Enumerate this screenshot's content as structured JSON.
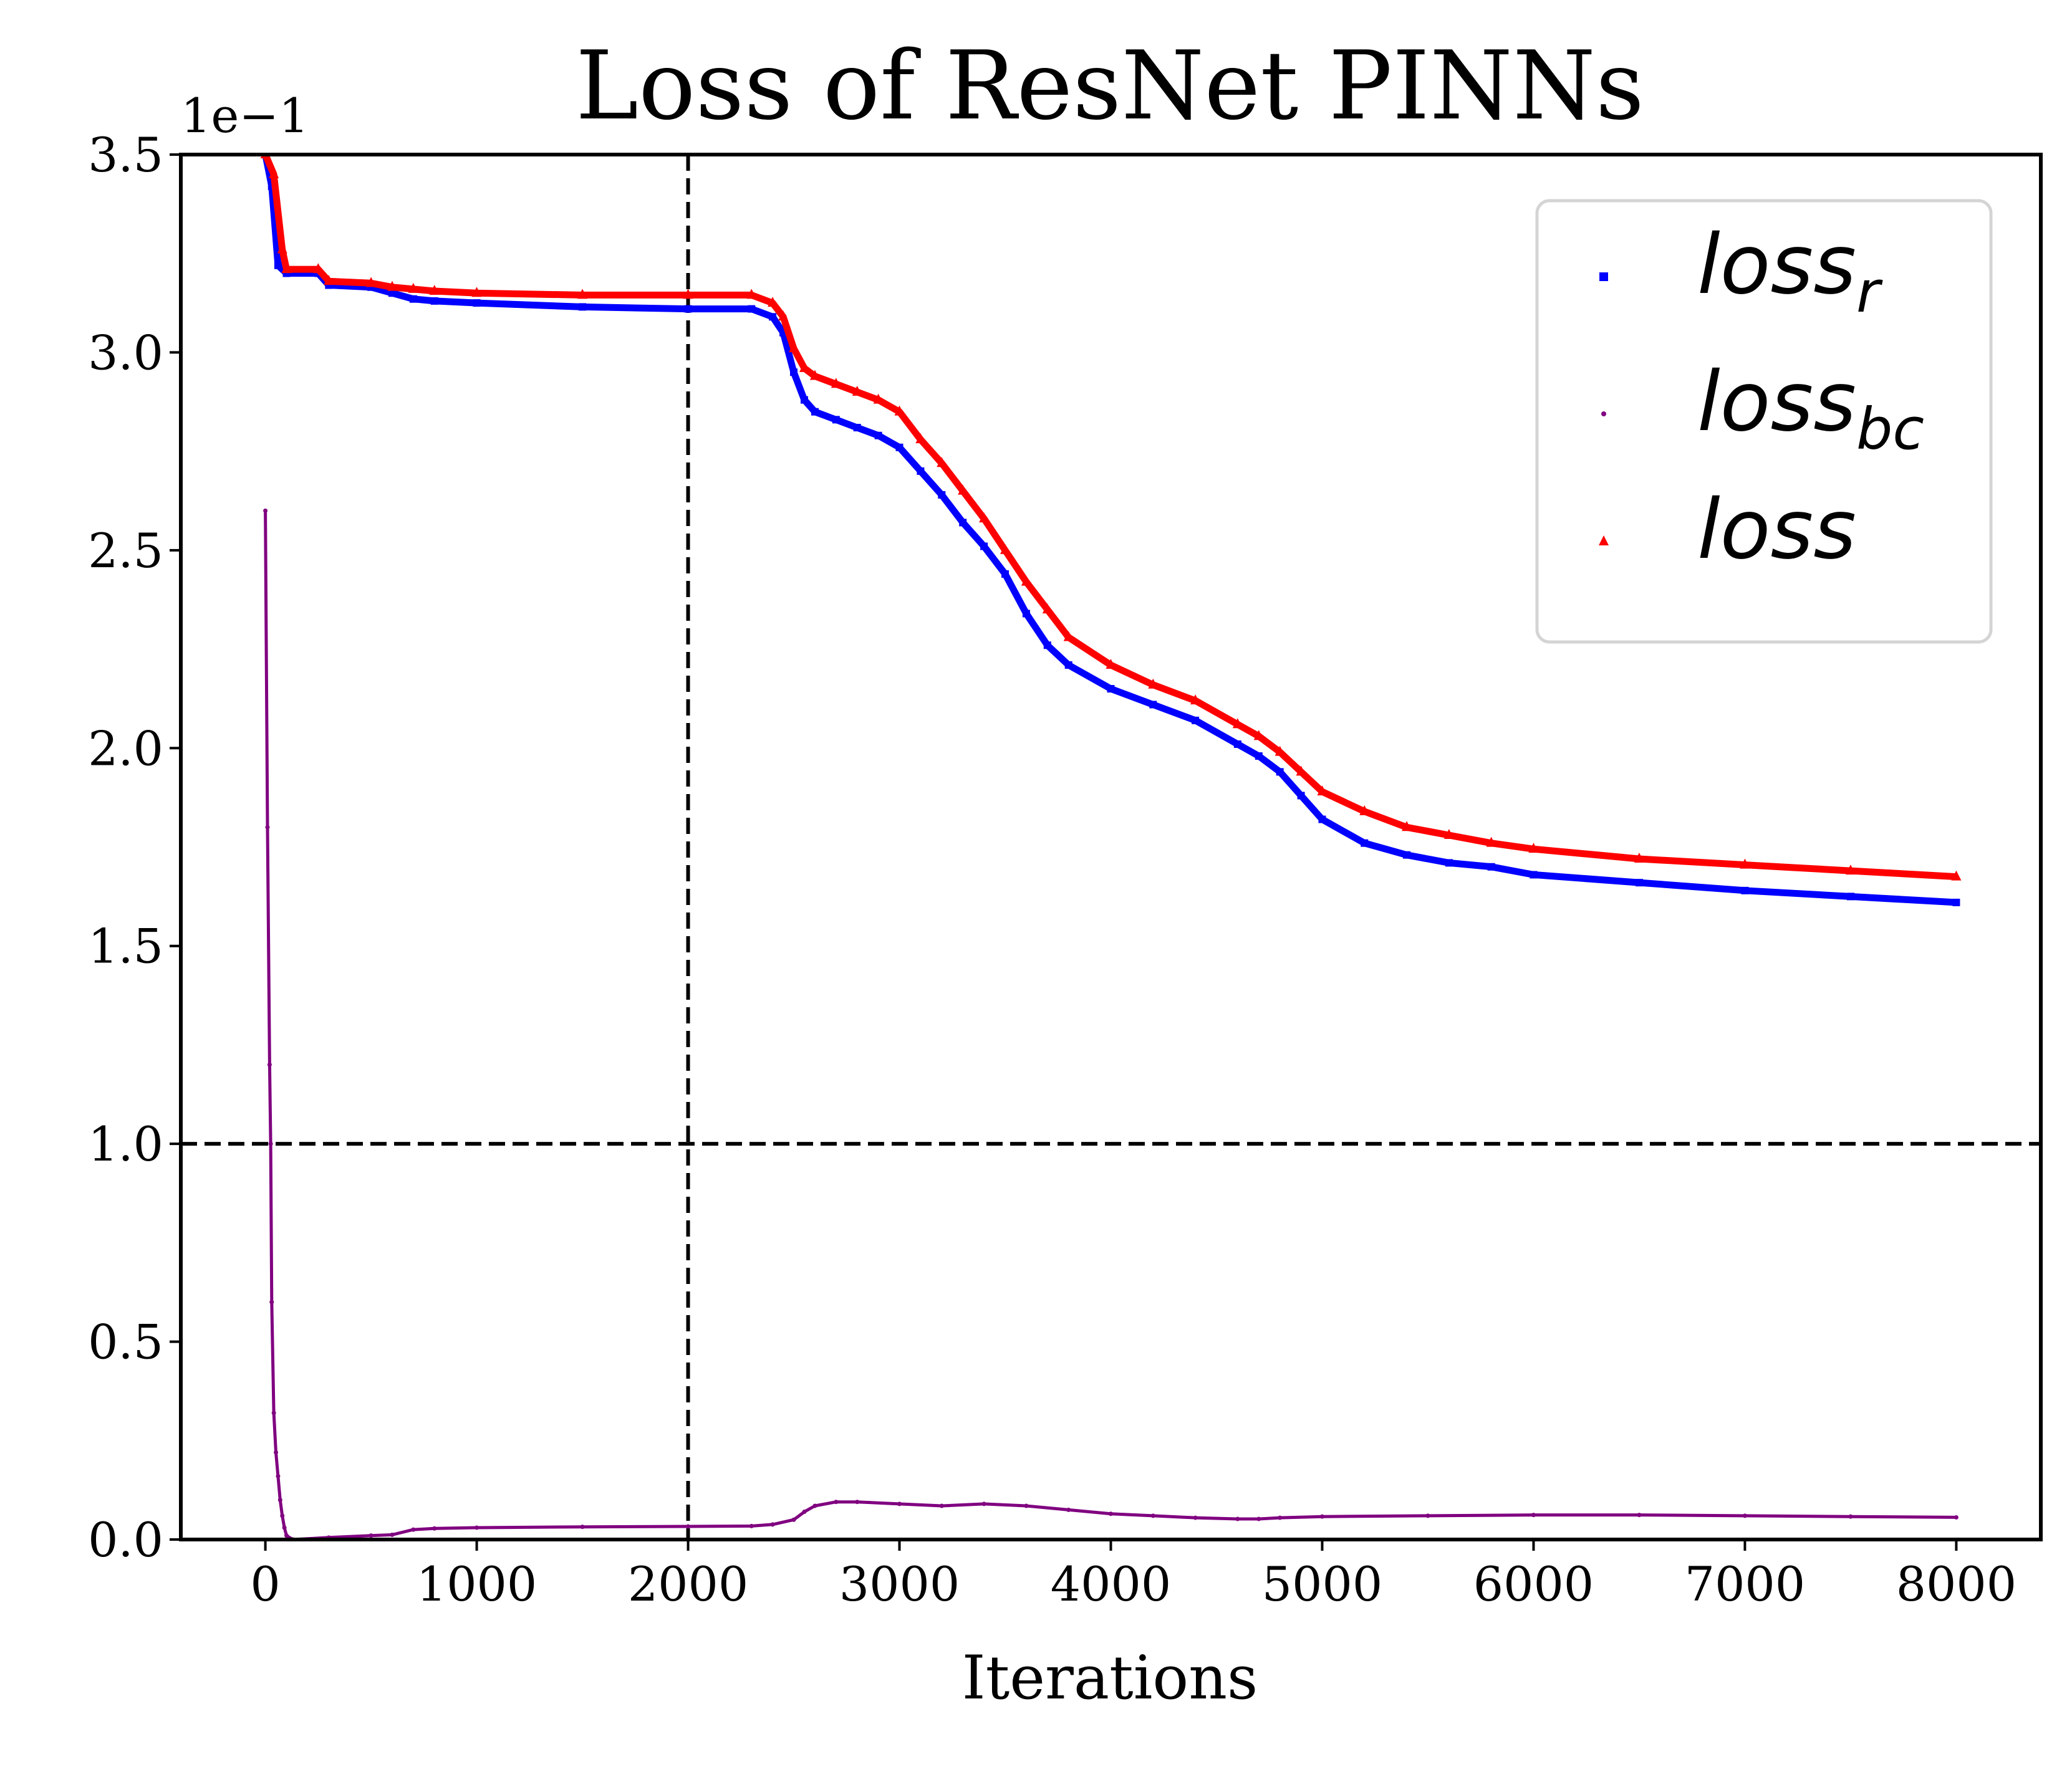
{
  "chart_data": {
    "type": "line",
    "title": "Loss of ResNet PINNs",
    "xlabel": "Iterations",
    "ylabel": "",
    "y_scale_label": "1e−1",
    "xlim": [
      -400,
      8400
    ],
    "ylim": [
      0.0,
      3.5
    ],
    "xticks": [
      0,
      1000,
      2000,
      3000,
      4000,
      5000,
      6000,
      7000,
      8000
    ],
    "xtick_labels": [
      "0",
      "1000",
      "2000",
      "3000",
      "4000",
      "5000",
      "6000",
      "7000",
      "8000"
    ],
    "yticks": [
      0.0,
      0.5,
      1.0,
      1.5,
      2.0,
      2.5,
      3.0,
      3.5
    ],
    "ytick_labels": [
      "0.0",
      "0.5",
      "1.0",
      "1.5",
      "2.0",
      "2.5",
      "3.0",
      "3.5"
    ],
    "grid": false,
    "legend_position": "top-right",
    "reference_lines": [
      {
        "orientation": "vertical",
        "value": 2000,
        "style": "dashed",
        "color": "#000000"
      },
      {
        "orientation": "horizontal",
        "value": 1.0,
        "style": "dashed",
        "color": "#000000"
      }
    ],
    "series": [
      {
        "name": "r",
        "legend_base": "loss",
        "legend_sub": "r",
        "color": "#0000ff",
        "marker": "square",
        "x": [
          0,
          30,
          60,
          100,
          250,
          300,
          500,
          600,
          700,
          800,
          1000,
          1500,
          2000,
          2300,
          2400,
          2450,
          2500,
          2550,
          2600,
          2700,
          2800,
          2900,
          3000,
          3100,
          3200,
          3300,
          3400,
          3500,
          3600,
          3700,
          3800,
          4000,
          4200,
          4400,
          4600,
          4700,
          4800,
          4900,
          5000,
          5200,
          5400,
          5600,
          5800,
          6000,
          6500,
          7000,
          7500,
          8000
        ],
        "y": [
          3.5,
          3.42,
          3.22,
          3.2,
          3.2,
          3.17,
          3.165,
          3.15,
          3.135,
          3.13,
          3.125,
          3.115,
          3.11,
          3.11,
          3.09,
          3.05,
          2.95,
          2.88,
          2.85,
          2.83,
          2.81,
          2.79,
          2.76,
          2.7,
          2.64,
          2.57,
          2.51,
          2.44,
          2.34,
          2.26,
          2.21,
          2.15,
          2.11,
          2.07,
          2.01,
          1.98,
          1.94,
          1.88,
          1.82,
          1.76,
          1.73,
          1.71,
          1.7,
          1.68,
          1.66,
          1.64,
          1.625,
          1.61
        ]
      },
      {
        "name": "bc",
        "legend_base": "loss",
        "legend_sub": "bc",
        "color": "#800080",
        "marker": "point",
        "x": [
          0,
          10,
          20,
          25,
          30,
          40,
          50,
          60,
          70,
          80,
          90,
          100,
          130,
          300,
          500,
          600,
          700,
          800,
          1000,
          1500,
          2000,
          2300,
          2400,
          2500,
          2550,
          2600,
          2700,
          2800,
          3000,
          3200,
          3400,
          3600,
          3800,
          4000,
          4200,
          4400,
          4600,
          4700,
          4800,
          5000,
          5500,
          6000,
          6500,
          7000,
          7500,
          8000
        ],
        "y": [
          2.6,
          1.8,
          1.2,
          1.0,
          0.6,
          0.32,
          0.22,
          0.16,
          0.1,
          0.06,
          0.03,
          0.01,
          0.0,
          0.005,
          0.01,
          0.012,
          0.025,
          0.028,
          0.03,
          0.032,
          0.033,
          0.034,
          0.038,
          0.05,
          0.07,
          0.085,
          0.095,
          0.095,
          0.09,
          0.085,
          0.09,
          0.085,
          0.075,
          0.065,
          0.06,
          0.055,
          0.052,
          0.052,
          0.055,
          0.058,
          0.06,
          0.062,
          0.062,
          0.06,
          0.058,
          0.056
        ]
      },
      {
        "name": "",
        "legend_base": "loss",
        "legend_sub": "",
        "color": "#ff0000",
        "marker": "triangle",
        "x": [
          0,
          40,
          80,
          100,
          250,
          300,
          500,
          600,
          700,
          800,
          1000,
          1500,
          2000,
          2300,
          2400,
          2450,
          2500,
          2550,
          2600,
          2700,
          2800,
          2900,
          3000,
          3100,
          3200,
          3300,
          3400,
          3500,
          3600,
          3700,
          3800,
          4000,
          4200,
          4400,
          4600,
          4700,
          4800,
          4900,
          5000,
          5200,
          5400,
          5600,
          5800,
          6000,
          6500,
          7000,
          7500,
          8000
        ],
        "y": [
          3.5,
          3.45,
          3.26,
          3.21,
          3.21,
          3.18,
          3.175,
          3.165,
          3.16,
          3.155,
          3.15,
          3.145,
          3.145,
          3.145,
          3.125,
          3.09,
          3.01,
          2.96,
          2.94,
          2.92,
          2.9,
          2.88,
          2.85,
          2.78,
          2.72,
          2.65,
          2.58,
          2.5,
          2.42,
          2.35,
          2.28,
          2.21,
          2.16,
          2.12,
          2.06,
          2.03,
          1.99,
          1.94,
          1.89,
          1.84,
          1.8,
          1.78,
          1.76,
          1.745,
          1.72,
          1.705,
          1.69,
          1.675
        ]
      }
    ]
  }
}
